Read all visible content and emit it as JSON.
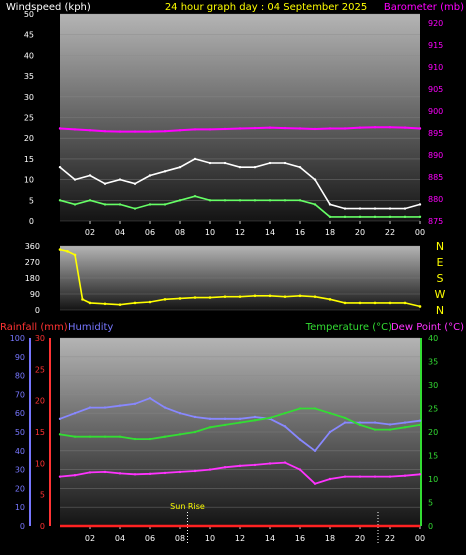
{
  "chart_data": [
    {
      "type": "line",
      "title": "24 hour graph day : 04 September 2025",
      "ylabel_left": "Windspeed (kph)",
      "ylabel_right": "Barometer (mb)",
      "x_ticks": [
        "02",
        "04",
        "06",
        "08",
        "10",
        "12",
        "14",
        "16",
        "18",
        "20",
        "22",
        "00"
      ],
      "y_left_ticks": [
        "0",
        "5",
        "10",
        "15",
        "20",
        "25",
        "30",
        "35",
        "40",
        "45",
        "50"
      ],
      "y_right_ticks": [
        "875",
        "880",
        "885",
        "890",
        "895",
        "900",
        "905",
        "910",
        "915",
        "920"
      ],
      "ylim_left": [
        0,
        50
      ],
      "ylim_right": [
        875,
        922
      ],
      "colors": {
        "gust": "#ffffff",
        "speed": "#66ff66",
        "barometer": "#ff00ff"
      },
      "series": [
        {
          "key": "gust",
          "x": [
            0,
            1,
            2,
            3,
            4,
            5,
            6,
            7,
            8,
            9,
            10,
            11,
            12,
            13,
            14,
            15,
            16,
            17,
            18,
            19,
            20,
            21,
            22,
            23,
            24
          ],
          "values": [
            13,
            10,
            11,
            9,
            10,
            9,
            11,
            12,
            13,
            15,
            14,
            14,
            13,
            13,
            14,
            14,
            13,
            10,
            4,
            3,
            3,
            3,
            3,
            3,
            4
          ]
        },
        {
          "key": "speed",
          "x": [
            0,
            1,
            2,
            3,
            4,
            5,
            6,
            7,
            8,
            9,
            10,
            11,
            12,
            13,
            14,
            15,
            16,
            17,
            18,
            19,
            20,
            21,
            22,
            23,
            24
          ],
          "values": [
            5,
            4,
            5,
            4,
            4,
            3,
            4,
            4,
            5,
            6,
            5,
            5,
            5,
            5,
            5,
            5,
            5,
            4,
            1,
            1,
            1,
            1,
            1,
            1,
            1
          ]
        },
        {
          "key": "barometer",
          "x": [
            0,
            1,
            2,
            3,
            4,
            5,
            6,
            7,
            8,
            9,
            10,
            11,
            12,
            13,
            14,
            15,
            16,
            17,
            18,
            19,
            20,
            21,
            22,
            23,
            24
          ],
          "values": [
            896,
            895.8,
            895.6,
            895.4,
            895.3,
            895.3,
            895.3,
            895.4,
            895.6,
            895.8,
            895.8,
            895.9,
            896,
            896.1,
            896.2,
            896.1,
            896,
            895.9,
            896,
            896,
            896.2,
            896.3,
            896.3,
            896.2,
            896
          ]
        }
      ]
    },
    {
      "type": "scatter",
      "y_ticks": [
        "0",
        "90",
        "180",
        "270",
        "360"
      ],
      "y_labels_right": [
        "N",
        "W",
        "S",
        "E",
        "N"
      ],
      "ylim": [
        0,
        360
      ],
      "color": "#ffff00",
      "x": [
        0,
        0.5,
        1,
        1.5,
        2,
        3,
        4,
        5,
        6,
        7,
        8,
        9,
        10,
        11,
        12,
        13,
        14,
        15,
        16,
        17,
        18,
        19,
        20,
        21,
        22,
        23,
        24
      ],
      "values": [
        340,
        330,
        310,
        60,
        40,
        35,
        30,
        40,
        45,
        60,
        65,
        70,
        70,
        75,
        75,
        80,
        80,
        75,
        80,
        75,
        60,
        40,
        40,
        40,
        40,
        40,
        20
      ]
    },
    {
      "type": "line",
      "ylabel_left_1": "Rainfall (mm)",
      "ylabel_left_2": "Humidity",
      "ylabel_right_1": "Temperature (°C)",
      "ylabel_right_2": "Dew Point (°C)",
      "x_ticks": [
        "02",
        "04",
        "06",
        "08",
        "10",
        "12",
        "14",
        "16",
        "18",
        "20",
        "22",
        "00"
      ],
      "humidity_ticks": [
        "0",
        "10",
        "20",
        "30",
        "40",
        "50",
        "60",
        "70",
        "80",
        "90",
        "100"
      ],
      "rain_ticks": [
        "0",
        "5",
        "10",
        "15",
        "20",
        "25",
        "30"
      ],
      "temp_ticks": [
        "0",
        "5",
        "10",
        "15",
        "20",
        "25",
        "30",
        "35",
        "40"
      ],
      "ylim_humidity": [
        0,
        100
      ],
      "ylim_temp": [
        0,
        40
      ],
      "annotation": "Sun Rise",
      "colors": {
        "humidity": "#8888ff",
        "temperature": "#33dd33",
        "dewpoint": "#ff33ff",
        "rain": "#ff2222"
      },
      "series": [
        {
          "key": "humidity",
          "x": [
            0,
            1,
            2,
            3,
            4,
            5,
            6,
            7,
            8,
            9,
            10,
            11,
            12,
            13,
            14,
            15,
            16,
            17,
            18,
            19,
            20,
            21,
            22,
            23,
            24
          ],
          "values": [
            57,
            60,
            63,
            63,
            64,
            65,
            68,
            63,
            60,
            58,
            57,
            57,
            57,
            58,
            57,
            53,
            46,
            40,
            50,
            55,
            55,
            55,
            54,
            55,
            56
          ]
        },
        {
          "key": "temperature",
          "x": [
            0,
            1,
            2,
            3,
            4,
            5,
            6,
            7,
            8,
            9,
            10,
            11,
            12,
            13,
            14,
            15,
            16,
            17,
            18,
            19,
            20,
            21,
            22,
            23,
            24
          ],
          "values": [
            19.5,
            19,
            19,
            19,
            19,
            18.5,
            18.5,
            19,
            19.5,
            20,
            21,
            21.5,
            22,
            22.5,
            23,
            24,
            25,
            25,
            24,
            23,
            21.5,
            20.5,
            20.5,
            21,
            21.5
          ]
        },
        {
          "key": "dewpoint",
          "x": [
            0,
            1,
            2,
            3,
            4,
            5,
            6,
            7,
            8,
            9,
            10,
            11,
            12,
            13,
            14,
            15,
            16,
            17,
            18,
            19,
            20,
            21,
            22,
            23,
            24
          ],
          "values": [
            10.5,
            10.8,
            11.4,
            11.5,
            11.2,
            11,
            11.1,
            11.3,
            11.5,
            11.7,
            12,
            12.5,
            12.8,
            13,
            13.3,
            13.5,
            12,
            9,
            10,
            10.5,
            10.5,
            10.5,
            10.5,
            10.7,
            11
          ]
        },
        {
          "key": "rain",
          "x": [
            0,
            24
          ],
          "values": [
            0,
            0
          ]
        }
      ]
    }
  ]
}
